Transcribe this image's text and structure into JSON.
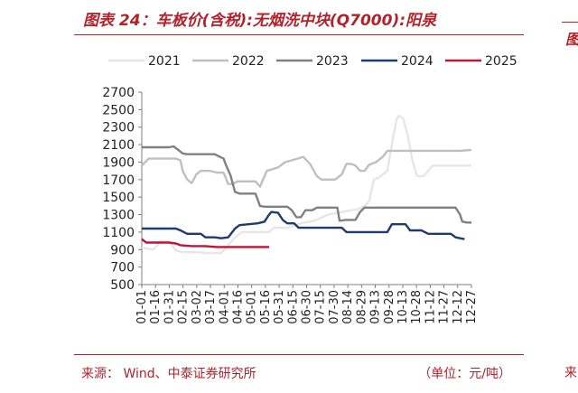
{
  "header": {
    "title": "图表 24：车板价(含税):无烟洗中块(Q7000):阳泉",
    "right_fragment": "图"
  },
  "footer": {
    "source": "来源：  Wind、中泰证券研究所",
    "unit": "（单位：元/吨）",
    "right_fragment": "来"
  },
  "chart_data": {
    "type": "line",
    "title": "",
    "xlabel": "",
    "ylabel": "",
    "ylim": [
      500,
      2700
    ],
    "yticks": [
      500,
      700,
      900,
      1100,
      1300,
      1500,
      1700,
      1900,
      2100,
      2300,
      2500,
      2700
    ],
    "xticks": [
      "01-01",
      "01-16",
      "01-31",
      "02-15",
      "03-02",
      "03-17",
      "04-01",
      "04-16",
      "05-01",
      "05-16",
      "05-31",
      "06-15",
      "06-30",
      "07-15",
      "07-30",
      "08-14",
      "08-29",
      "09-13",
      "09-28",
      "10-13",
      "10-28",
      "11-12",
      "11-27",
      "12-12",
      "12-27"
    ],
    "grid": false,
    "legend_position": "top",
    "series": [
      {
        "name": "2021",
        "color": "#e6e6e6",
        "points": [
          [
            0,
            920
          ],
          [
            5,
            900
          ],
          [
            7,
            950
          ],
          [
            8,
            1000
          ],
          [
            12,
            990
          ],
          [
            15,
            890
          ],
          [
            18,
            870
          ],
          [
            25,
            870
          ],
          [
            28,
            860
          ],
          [
            35,
            860
          ],
          [
            38,
            950
          ],
          [
            41,
            1040
          ],
          [
            44,
            1100
          ],
          [
            49,
            1100
          ],
          [
            53,
            1100
          ],
          [
            56,
            1100
          ],
          [
            58,
            1150
          ],
          [
            64,
            1150
          ],
          [
            70,
            1200
          ],
          [
            76,
            1230
          ],
          [
            82,
            1300
          ],
          [
            86,
            1320
          ],
          [
            90,
            1340
          ],
          [
            95,
            1360
          ],
          [
            98,
            1400
          ],
          [
            100,
            1450
          ],
          [
            102,
            1700
          ],
          [
            104,
            1720
          ],
          [
            108,
            1800
          ],
          [
            110,
            2100
          ],
          [
            112,
            2380
          ],
          [
            113,
            2430
          ],
          [
            115,
            2400
          ],
          [
            117,
            2200
          ],
          [
            119,
            1920
          ],
          [
            121,
            1740
          ],
          [
            124,
            1740
          ],
          [
            126,
            1800
          ],
          [
            128,
            1860
          ],
          [
            145,
            1860
          ]
        ]
      },
      {
        "name": "2022",
        "color": "#bfbfbf",
        "points": [
          [
            0,
            1860
          ],
          [
            3,
            1940
          ],
          [
            5,
            1940
          ],
          [
            12,
            1940
          ],
          [
            15,
            1940
          ],
          [
            17,
            1920
          ],
          [
            18,
            1800
          ],
          [
            20,
            1700
          ],
          [
            22,
            1660
          ],
          [
            24,
            1760
          ],
          [
            26,
            1800
          ],
          [
            30,
            1800
          ],
          [
            33,
            1780
          ],
          [
            36,
            1780
          ],
          [
            38,
            1650
          ],
          [
            40,
            1650
          ],
          [
            42,
            1680
          ],
          [
            46,
            1680
          ],
          [
            50,
            1680
          ],
          [
            52,
            1620
          ],
          [
            55,
            1800
          ],
          [
            60,
            1840
          ],
          [
            63,
            1900
          ],
          [
            66,
            1920
          ],
          [
            71,
            1960
          ],
          [
            74,
            1880
          ],
          [
            77,
            1740
          ],
          [
            79,
            1700
          ],
          [
            82,
            1700
          ],
          [
            85,
            1700
          ],
          [
            88,
            1760
          ],
          [
            90,
            1880
          ],
          [
            92,
            1880
          ],
          [
            94,
            1860
          ],
          [
            96,
            1800
          ],
          [
            98,
            1800
          ],
          [
            100,
            1870
          ],
          [
            103,
            1900
          ],
          [
            106,
            1960
          ],
          [
            108,
            2030
          ],
          [
            112,
            2030
          ],
          [
            130,
            2030
          ],
          [
            140,
            2030
          ],
          [
            145,
            2040
          ]
        ]
      },
      {
        "name": "2023",
        "color": "#808080",
        "points": [
          [
            0,
            2070
          ],
          [
            6,
            2070
          ],
          [
            12,
            2070
          ],
          [
            14,
            2080
          ],
          [
            18,
            2000
          ],
          [
            20,
            1990
          ],
          [
            28,
            1990
          ],
          [
            32,
            1990
          ],
          [
            36,
            1940
          ],
          [
            37,
            1870
          ],
          [
            39,
            1750
          ],
          [
            41,
            1560
          ],
          [
            43,
            1540
          ],
          [
            48,
            1540
          ],
          [
            50,
            1540
          ],
          [
            52,
            1400
          ],
          [
            54,
            1390
          ],
          [
            60,
            1390
          ],
          [
            64,
            1390
          ],
          [
            66,
            1350
          ],
          [
            68,
            1270
          ],
          [
            70,
            1270
          ],
          [
            72,
            1350
          ],
          [
            75,
            1350
          ],
          [
            77,
            1380
          ],
          [
            83,
            1380
          ],
          [
            86,
            1380
          ],
          [
            87,
            1230
          ],
          [
            90,
            1240
          ],
          [
            94,
            1240
          ],
          [
            96,
            1330
          ],
          [
            98,
            1380
          ],
          [
            105,
            1380
          ],
          [
            115,
            1380
          ],
          [
            130,
            1380
          ],
          [
            138,
            1380
          ],
          [
            140,
            1300
          ],
          [
            141,
            1220
          ],
          [
            143,
            1210
          ],
          [
            145,
            1210
          ]
        ]
      },
      {
        "name": "2024",
        "color": "#1f3a6e",
        "points": [
          [
            0,
            1140
          ],
          [
            8,
            1140
          ],
          [
            15,
            1140
          ],
          [
            17,
            1120
          ],
          [
            20,
            1080
          ],
          [
            26,
            1080
          ],
          [
            28,
            1040
          ],
          [
            32,
            1040
          ],
          [
            35,
            1030
          ],
          [
            38,
            1040
          ],
          [
            41,
            1140
          ],
          [
            43,
            1180
          ],
          [
            47,
            1190
          ],
          [
            51,
            1200
          ],
          [
            54,
            1220
          ],
          [
            56,
            1300
          ],
          [
            57,
            1330
          ],
          [
            60,
            1320
          ],
          [
            62,
            1240
          ],
          [
            64,
            1200
          ],
          [
            67,
            1200
          ],
          [
            69,
            1150
          ],
          [
            75,
            1150
          ],
          [
            82,
            1150
          ],
          [
            88,
            1150
          ],
          [
            90,
            1100
          ],
          [
            95,
            1100
          ],
          [
            100,
            1100
          ],
          [
            108,
            1100
          ],
          [
            110,
            1190
          ],
          [
            116,
            1190
          ],
          [
            118,
            1120
          ],
          [
            123,
            1120
          ],
          [
            126,
            1080
          ],
          [
            130,
            1080
          ],
          [
            136,
            1080
          ],
          [
            138,
            1040
          ],
          [
            142,
            1020
          ]
        ]
      },
      {
        "name": "2025",
        "color": "#c0143c",
        "points": [
          [
            0,
            1020
          ],
          [
            2,
            980
          ],
          [
            5,
            980
          ],
          [
            12,
            980
          ],
          [
            15,
            970
          ],
          [
            17,
            950
          ],
          [
            22,
            940
          ],
          [
            28,
            940
          ],
          [
            33,
            930
          ],
          [
            40,
            930
          ],
          [
            50,
            930
          ],
          [
            56,
            930
          ]
        ]
      }
    ]
  }
}
